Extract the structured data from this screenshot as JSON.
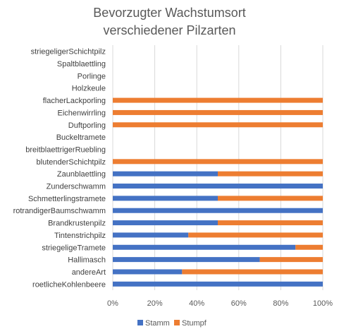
{
  "chart_data": {
    "type": "bar",
    "orientation": "horizontal",
    "stacked": "percent",
    "title": "Bevorzugter Wachstumsort\nverschiedener Pilzarten",
    "title_lines": [
      "Bevorzugter Wachstumsort",
      "verschiedener Pilzarten"
    ],
    "categories": [
      "striegeligerSchichtpilz",
      "Spaltblaettling",
      "Porlinge",
      "Holzkeule",
      "flacherLackporling",
      "Eichenwirrling",
      "Duftporling",
      "Buckeltramete",
      "breitblaettrigerRuebling",
      "blutenderSchichtpilz",
      "Zaunblaettling",
      "Zunderschwamm",
      "Schmetterlingstramete",
      "rotrandigerBaumschwamm",
      "Brandkrustenpilz",
      "Tintenstrichpilz",
      "striegeligeTramete",
      "Hallimasch",
      "andereArt",
      "roetlicheKohlenbeere"
    ],
    "series": [
      {
        "name": "Stamm",
        "values": [
          0,
          0,
          0,
          0,
          0,
          0,
          0,
          0,
          0,
          0,
          50,
          100,
          50,
          100,
          50,
          36,
          87,
          70,
          33,
          100
        ]
      },
      {
        "name": "Stumpf",
        "values": [
          0,
          0,
          0,
          0,
          100,
          100,
          100,
          0,
          0,
          100,
          50,
          0,
          50,
          0,
          50,
          64,
          13,
          30,
          67,
          0
        ]
      }
    ],
    "xlim": [
      0,
      100
    ],
    "x_ticks": [
      "0%",
      "20%",
      "40%",
      "60%",
      "80%",
      "100%"
    ],
    "grid": true,
    "legend": "bottom"
  },
  "colors": {
    "Stamm": "#4472c4",
    "Stumpf": "#ed7d31",
    "grid": "#d9d9d9"
  }
}
